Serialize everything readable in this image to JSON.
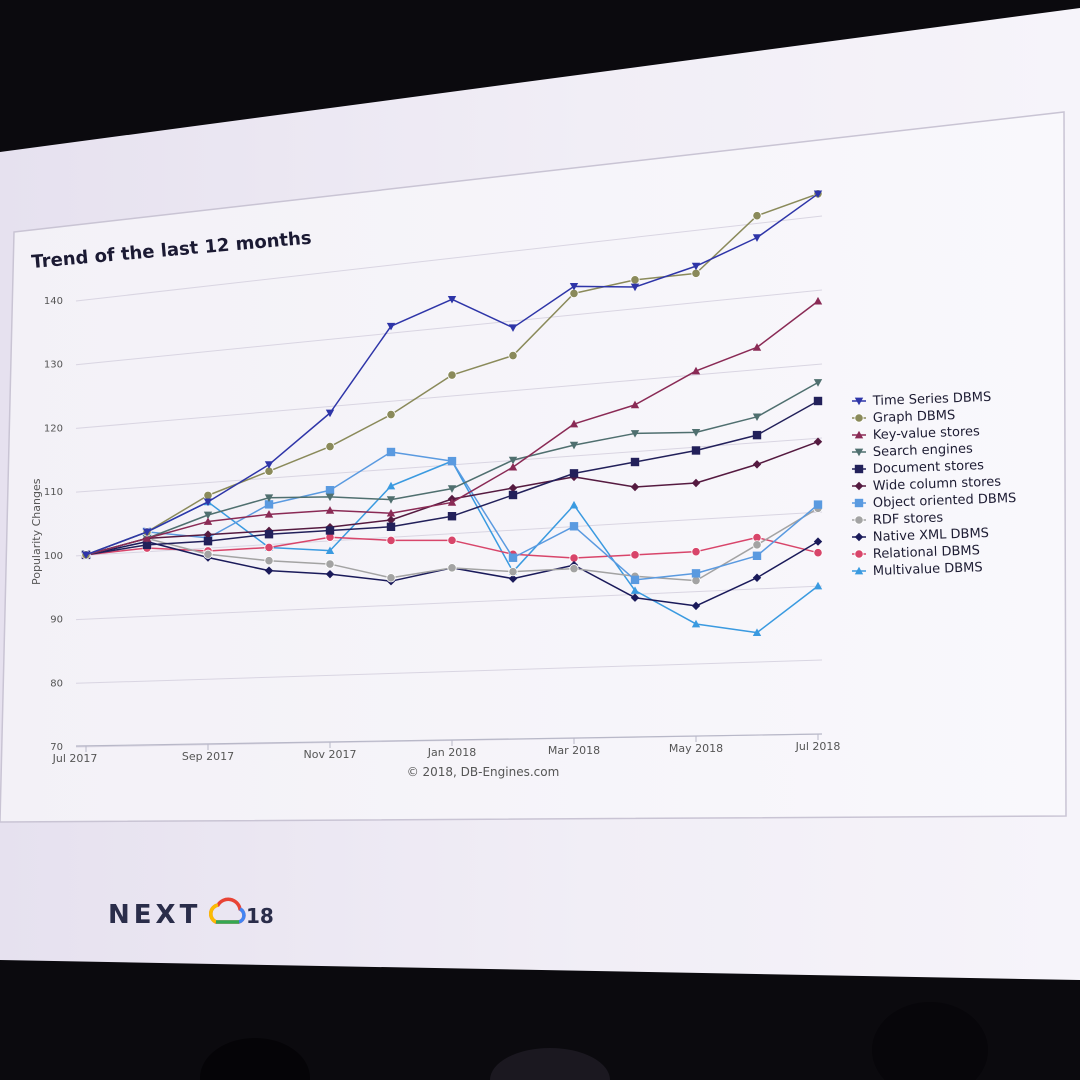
{
  "chart_data": {
    "type": "line",
    "title": "Trend of the last 12 months",
    "ylabel": "Popularity Changes",
    "xlabel": "",
    "ylim": [
      70,
      140
    ],
    "yticks": [
      "70",
      "80",
      "90",
      "100",
      "110",
      "120",
      "130",
      "140"
    ],
    "xticks": [
      "Jul 2017",
      "Sep 2017",
      "Nov 2017",
      "Jan 2018",
      "Mar 2018",
      "May 2018",
      "Jul 2018"
    ],
    "x": [
      "Jul 2017",
      "Aug 2017",
      "Sep 2017",
      "Oct 2017",
      "Nov 2017",
      "Dec 2017",
      "Jan 2018",
      "Feb 2018",
      "Mar 2018",
      "Apr 2018",
      "May 2018",
      "Jun 2018",
      "Jul 2018"
    ],
    "grid": true,
    "legend_position": "right",
    "copyright": "© 2018, DB-Engines.com",
    "series": [
      {
        "name": "Time Series DBMS",
        "color": "#2e35a8",
        "marker": "triangle-down",
        "values": [
          100,
          103,
          107,
          112,
          119,
          131,
          134,
          129,
          134,
          133,
          135,
          138,
          143
        ]
      },
      {
        "name": "Graph DBMS",
        "color": "#8a8a5a",
        "marker": "circle",
        "values": [
          100,
          103,
          108,
          111,
          114,
          118,
          123,
          125,
          133,
          134,
          134,
          141,
          143
        ]
      },
      {
        "name": "Key-value stores",
        "color": "#8a2a55",
        "marker": "triangle-up",
        "values": [
          100,
          102,
          104,
          104.5,
          104.5,
          103.5,
          104.5,
          109,
          114.5,
          116.5,
          120.5,
          123,
          128.5
        ]
      },
      {
        "name": "Search engines",
        "color": "#4f6f6f",
        "marker": "triangle-down",
        "values": [
          100,
          102,
          105,
          107,
          106.5,
          105.5,
          106.5,
          110,
          111.5,
          112.5,
          112,
          113.5,
          117.5
        ]
      },
      {
        "name": "Document stores",
        "color": "#22205a",
        "marker": "square",
        "values": [
          100,
          101,
          101,
          101.5,
          101.5,
          101.5,
          102.5,
          105,
          107.5,
          108.5,
          109.5,
          111,
          115
        ]
      },
      {
        "name": "Wide column stores",
        "color": "#551a40",
        "marker": "diamond",
        "values": [
          100,
          102,
          102,
          102,
          102,
          102.5,
          105,
          106,
          107,
          105,
          105,
          107,
          109.5
        ]
      },
      {
        "name": "Object oriented DBMS",
        "color": "#5a9ae0",
        "marker": "square",
        "values": [
          100,
          103,
          101.5,
          106,
          107.5,
          112.5,
          110.5,
          96,
          100,
          92,
          92.5,
          94.5,
          101
        ]
      },
      {
        "name": "RDF stores",
        "color": "#a3a3a3",
        "marker": "circle",
        "values": [
          100,
          102,
          99,
          97.5,
          96.5,
          94,
          95,
          94,
          94,
          92.5,
          91.5,
          96,
          100.5
        ]
      },
      {
        "name": "Native XML DBMS",
        "color": "#1a1a5a",
        "marker": "diamond",
        "values": [
          100,
          101.5,
          98.5,
          96,
          95,
          93.5,
          95,
          93,
          94.5,
          89.5,
          88,
          91.5,
          96
        ]
      },
      {
        "name": "Relational DBMS",
        "color": "#d8456a",
        "marker": "circle",
        "values": [
          100,
          100.5,
          99.5,
          99.5,
          100.5,
          99.5,
          99,
          96.5,
          95.5,
          95.5,
          95.5,
          97,
          94.5
        ]
      },
      {
        "name": "Multivalue DBMS",
        "color": "#3a9ae0",
        "marker": "triangle-up",
        "values": [
          100,
          103,
          107,
          99.5,
          98.5,
          107.5,
          110.5,
          94,
          103,
          90.5,
          85.5,
          84,
          90
        ]
      }
    ]
  },
  "branding": {
    "logo_text": "NEXT",
    "logo_suffix": "18"
  }
}
